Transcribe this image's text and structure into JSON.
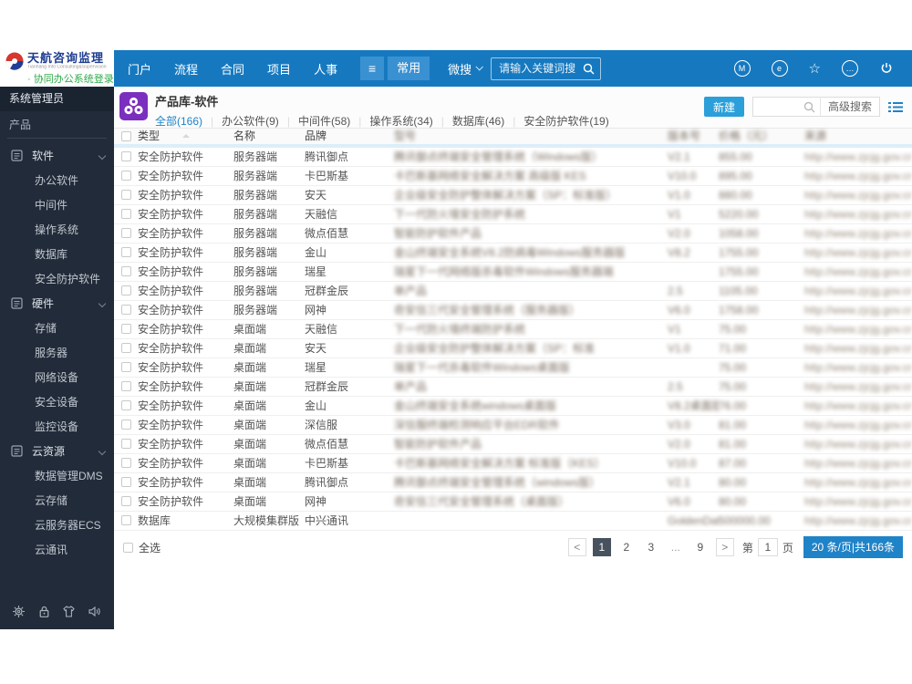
{
  "logo": {
    "title": "天航咨询监理",
    "subtitle": "Tianhang Info Consulting&Supervision",
    "login_link": "· 协同办公系统登录"
  },
  "topnav": {
    "items": [
      "门户",
      "流程",
      "合同",
      "项目",
      "人事"
    ],
    "menu_glyph": "≡",
    "active_item": "常用",
    "search_dropdown": "微搜",
    "search_placeholder": "请输入关键词搜",
    "right_icons": [
      {
        "name": "m-app-icon",
        "style": "circle",
        "glyph": "M"
      },
      {
        "name": "message-icon",
        "style": "circle",
        "glyph": "e"
      },
      {
        "name": "favorites-star-icon",
        "style": "star",
        "glyph": "☆"
      },
      {
        "name": "more-options-icon",
        "style": "circle",
        "glyph": "…"
      },
      {
        "name": "power-icon",
        "style": "power",
        "glyph": ""
      }
    ]
  },
  "sidebar": {
    "role": "系统管理员",
    "section": "产品",
    "groups": [
      {
        "label": "软件",
        "children": [
          "办公软件",
          "中间件",
          "操作系统",
          "数据库",
          "安全防护软件"
        ]
      },
      {
        "label": "硬件",
        "children": [
          "存储",
          "服务器",
          "网络设备",
          "安全设备",
          "监控设备"
        ]
      },
      {
        "label": "云资源",
        "children": [
          "数据管理DMS",
          "云存储",
          "云服务器ECS",
          "云通讯"
        ]
      }
    ],
    "footer_icons": [
      "settings-gear-icon",
      "lock-screen-icon",
      "theme-shirt-icon",
      "sound-volume-icon"
    ]
  },
  "content": {
    "title": "产品库-软件",
    "tabs": [
      {
        "label": "全部(166)",
        "active": true
      },
      {
        "label": "办公软件(9)",
        "active": false
      },
      {
        "label": "中间件(58)",
        "active": false
      },
      {
        "label": "操作系统(34)",
        "active": false
      },
      {
        "label": "数据库(46)",
        "active": false
      },
      {
        "label": "安全防护软件(19)",
        "active": false
      }
    ],
    "new_button": "新建",
    "advanced_search": "高级搜索"
  },
  "table": {
    "headers": [
      {
        "label": "类型",
        "blurred": false
      },
      {
        "label": "名称",
        "blurred": false
      },
      {
        "label": "品牌",
        "blurred": false
      },
      {
        "label": "型号",
        "blurred": true
      },
      {
        "label": "版本号",
        "blurred": true
      },
      {
        "label": "价格（元）",
        "blurred": true
      },
      {
        "label": "来源",
        "blurred": true
      }
    ],
    "rows": [
      [
        "安全防护软件",
        "服务器端",
        "腾讯御点",
        "腾讯御点终端安全管理系统（Windows版）",
        "V2.1",
        "855.00",
        "http://www.zjcjg.gov.cn/djsg/"
      ],
      [
        "安全防护软件",
        "服务器端",
        "卡巴斯基",
        "卡巴斯基网络安全解决方案 高级版 KES",
        "V10.0",
        "895.00",
        "http://www.zjcjg.gov.cn/djsg/"
      ],
      [
        "安全防护软件",
        "服务器端",
        "安天",
        "企业级安全防护整体解决方案（SP：标准版）",
        "V1.0",
        "880.00",
        "http://www.zjcjg.gov.cn/djsg/"
      ],
      [
        "安全防护软件",
        "服务器端",
        "天融信",
        "下一代防火墙安全防护系统",
        "V1",
        "5220.00",
        "http://www.zjcjg.gov.cn/djsg/"
      ],
      [
        "安全防护软件",
        "服务器端",
        "微点佰慧",
        "智能防护软件产品",
        "V2.0",
        "1058.00",
        "http://www.zjcjg.gov.cn/djsg/"
      ],
      [
        "安全防护软件",
        "服务器端",
        "金山",
        "金山终端安全系统V8.2防病毒Windows服务器版",
        "V8.2",
        "1755.00",
        "http://www.zjcjg.gov.cn/djsg/"
      ],
      [
        "安全防护软件",
        "服务器端",
        "瑞星",
        "瑞星下一代网络版杀毒软件Windows服务器端",
        "",
        "1755.00",
        "http://www.zjcjg.gov.cn/djsg/"
      ],
      [
        "安全防护软件",
        "服务器端",
        "冠群金辰",
        "单产品",
        "2.5",
        "1105.00",
        "http://www.zjcjg.gov.cn/djsg/"
      ],
      [
        "安全防护软件",
        "服务器端",
        "网神",
        "奇安信三代安全管理系统（服务器版）",
        "V6.0",
        "1758.00",
        "http://www.zjcjg.gov.cn/djsg/"
      ],
      [
        "安全防护软件",
        "桌面端",
        "天融信",
        "下一代防火墙终端防护系统",
        "V1",
        "75.00",
        "http://www.zjcjg.gov.cn/djsg/"
      ],
      [
        "安全防护软件",
        "桌面端",
        "安天",
        "企业级安全防护整体解决方案（SP：标准",
        "V1.0",
        "71.00",
        "http://www.zjcjg.gov.cn/djsg/"
      ],
      [
        "安全防护软件",
        "桌面端",
        "瑞星",
        "瑞星下一代杀毒软件Windows桌面版",
        "",
        "75.00",
        "http://www.zjcjg.gov.cn/djsg/"
      ],
      [
        "安全防护软件",
        "桌面端",
        "冠群金辰",
        "单产品",
        "2.5",
        "75.00",
        "http://www.zjcjg.gov.cn/djsg/"
      ],
      [
        "安全防护软件",
        "桌面端",
        "金山",
        "金山终端安全系统windows桌面版",
        "V8.2桌面版",
        "76.00",
        "http://www.zjcjg.gov.cn/djsg/"
      ],
      [
        "安全防护软件",
        "桌面端",
        "深信服",
        "深信服终端检测响应平台EDR软件",
        "V3.0",
        "81.00",
        "http://www.zjcjg.gov.cn/djsg/"
      ],
      [
        "安全防护软件",
        "桌面端",
        "微点佰慧",
        "智能防护软件产品",
        "V2.0",
        "81.00",
        "http://www.zjcjg.gov.cn/djsg/"
      ],
      [
        "安全防护软件",
        "桌面端",
        "卡巴斯基",
        "卡巴斯基网络安全解决方案 标准版（KES）",
        "V10.0",
        "87.00",
        "http://www.zjcjg.gov.cn/djsg/"
      ],
      [
        "安全防护软件",
        "桌面端",
        "腾讯御点",
        "腾讯御点终端安全管理系统（windows版）",
        "V2.1",
        "80.00",
        "http://www.zjcjg.gov.cn/djsg/"
      ],
      [
        "安全防护软件",
        "桌面端",
        "网神",
        "奇安信三代安全管理系统（桌面版）",
        "V6.0",
        "80.00",
        "http://www.zjcjg.gov.cn/djsg/"
      ],
      [
        "数据库",
        "大规模集群版",
        "中兴通讯",
        "",
        "GoldenData s...",
        "500000.00",
        "http://www.zjcjg.gov.cn/djsg/"
      ]
    ],
    "select_all": "全选"
  },
  "pagination": {
    "pages": [
      {
        "label": "<",
        "kind": "nav"
      },
      {
        "label": "1",
        "kind": "page",
        "active": true
      },
      {
        "label": "2",
        "kind": "page"
      },
      {
        "label": "3",
        "kind": "page"
      },
      {
        "label": "...",
        "kind": "ellipsis"
      },
      {
        "label": "9",
        "kind": "page"
      },
      {
        "label": ">",
        "kind": "nav"
      }
    ],
    "jump_prefix": "第",
    "jump_value": "1",
    "jump_suffix": "页",
    "size_label": "20 条/页|共166条"
  }
}
